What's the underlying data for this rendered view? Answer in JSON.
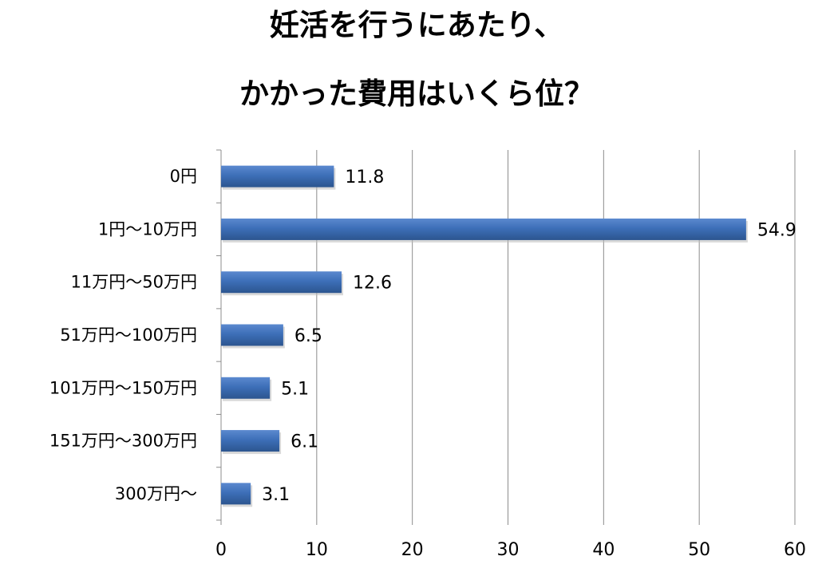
{
  "chart_data": {
    "type": "bar",
    "orientation": "horizontal",
    "title_lines": [
      "妊活を行うにあたり、",
      "かかった費用はいくら位？"
    ],
    "categories": [
      "0円",
      "1円～10万円",
      "11万円～50万円",
      "51万円～100万円",
      "101万円～150万円",
      "151万円～300万円",
      "300万円～"
    ],
    "values": [
      11.8,
      54.9,
      12.6,
      6.5,
      5.1,
      6.1,
      3.1
    ],
    "data_labels": [
      "11.8",
      "54.9",
      "12.6",
      "6.5",
      "5.1",
      "6.1",
      "3.1"
    ],
    "x_ticks": [
      "0",
      "10",
      "20",
      "30",
      "40",
      "50",
      "60"
    ],
    "xlim": [
      0,
      60
    ],
    "xlabel": "",
    "ylabel": "",
    "grid": "vertical",
    "legend": "none",
    "colors": {
      "bar": "#3d6fb8",
      "bar_dark": "#2c558f",
      "bar_light": "#5b89cf",
      "grid": "#8c8c8c",
      "axis": "#8c8c8c",
      "text": "#000000"
    }
  }
}
